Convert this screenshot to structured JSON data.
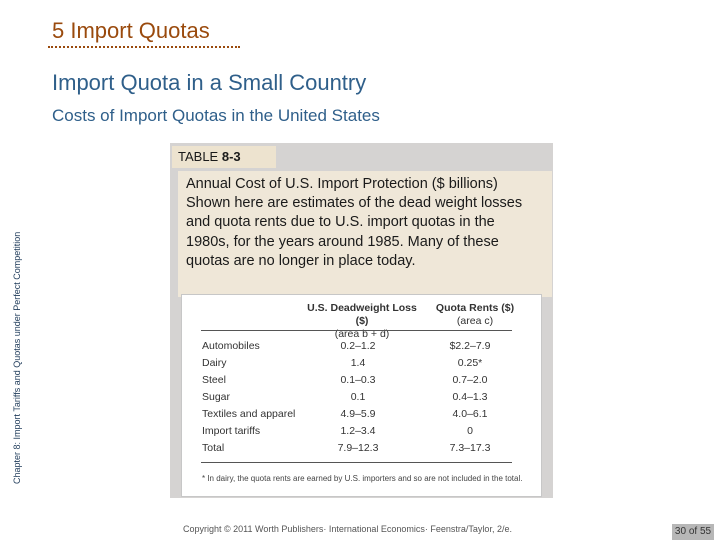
{
  "slide": {
    "section_title": "5 Import Quotas",
    "heading": "Import Quota in a Small Country",
    "subheading": "Costs of Import Quotas in the United States",
    "side_text": "Chapter 8: Import Tariffs and Quotas under Perfect Competition"
  },
  "table": {
    "tab_prefix": "TABLE",
    "tab_number": "8-3",
    "caption": "Annual Cost of U.S. Import Protection ($ billions) Shown here are estimates of the dead weight losses and quota rents due to U.S. import quotas in the 1980s, for the years around 1985. Many of these quotas are no longer in place today.",
    "headers": {
      "dwl": "U.S. Deadweight Loss ($)",
      "dwl_sub": "(area b + d)",
      "rents": "Quota Rents ($)",
      "rents_sub": "(area c)"
    },
    "rows": [
      {
        "label": "Automobiles",
        "dwl": "0.2–1.2",
        "rents": "$2.2–7.9"
      },
      {
        "label": "Dairy",
        "dwl": "1.4",
        "rents": "0.25*"
      },
      {
        "label": "Steel",
        "dwl": "0.1–0.3",
        "rents": "0.7–2.0"
      },
      {
        "label": "Sugar",
        "dwl": "0.1",
        "rents": "0.4–1.3"
      },
      {
        "label": "Textiles and apparel",
        "dwl": "4.9–5.9",
        "rents": "4.0–6.1"
      },
      {
        "label": "Import tariffs",
        "dwl": "1.2–3.4",
        "rents": "0"
      },
      {
        "label": "Total",
        "dwl": "7.9–12.3",
        "rents": "7.3–17.3"
      }
    ],
    "footnote": "* In dairy, the quota rents are earned by U.S. importers and so are not included in the total."
  },
  "footer": {
    "copyright": "Copyright © 2011 Worth Publishers· International Economics· Feenstra/Taylor, 2/e.",
    "page": "30 of 55"
  }
}
